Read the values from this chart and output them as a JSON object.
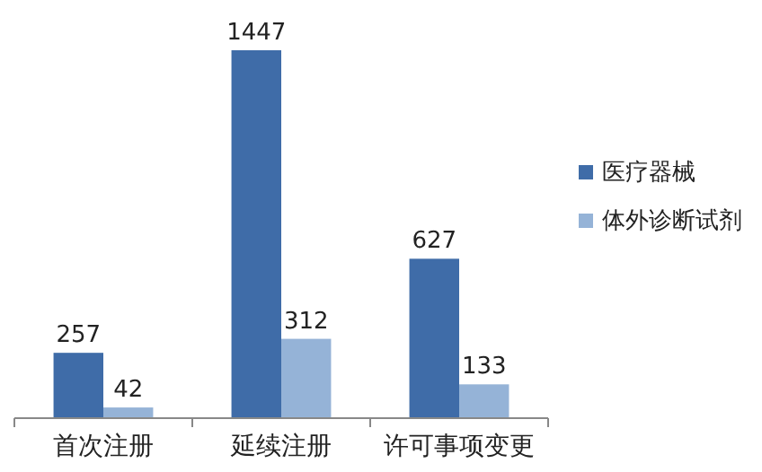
{
  "chart_data": {
    "type": "bar",
    "categories": [
      "首次注册",
      "延续注册",
      "许可事项变更"
    ],
    "series": [
      {
        "name": "医疗器械",
        "color": "#3f6ca8",
        "values": [
          257,
          1447,
          627
        ]
      },
      {
        "name": "体外诊断试剂",
        "color": "#95b3d7",
        "values": [
          42,
          312,
          133
        ]
      }
    ],
    "data_labels": true,
    "legend": "right"
  }
}
